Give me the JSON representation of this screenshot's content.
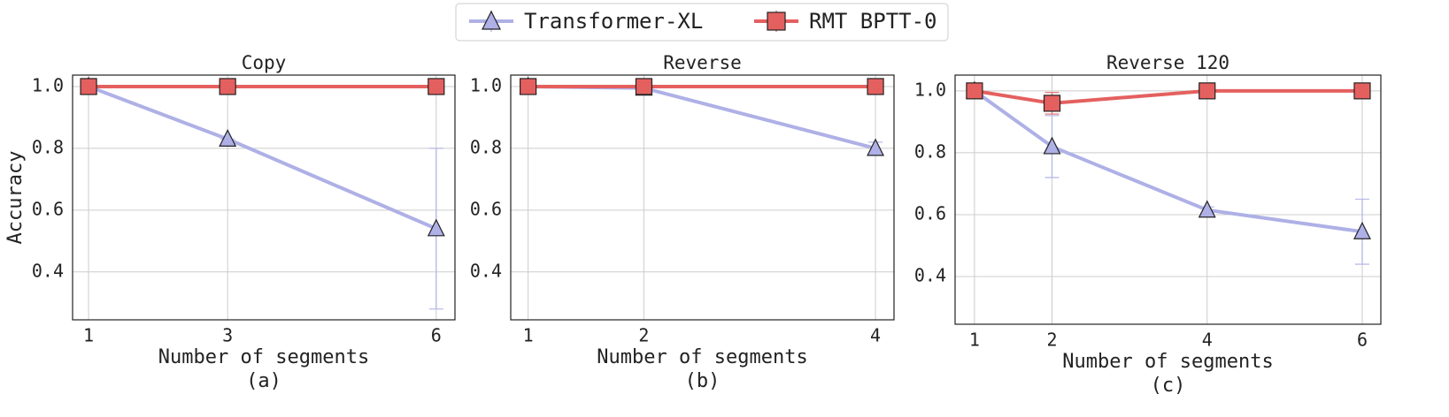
{
  "chart_data": [
    {
      "type": "line",
      "title": "Copy",
      "xlabel": "Number of segments",
      "ylabel": "Accuracy",
      "caption": "(a)",
      "x": [
        1,
        3,
        6
      ],
      "xlim": [
        0.77,
        6.27
      ],
      "xticks": [
        1,
        3,
        6
      ],
      "ylim": [
        0.245,
        1.037
      ],
      "yticks": [
        0.4,
        0.6,
        0.8,
        {
          "value": 1,
          "label": "1.0"
        }
      ],
      "grid": true,
      "series": [
        {
          "name": "Transformer-XL",
          "color": "#aeb0e6",
          "marker": "triangle",
          "values": [
            1.0,
            0.83,
            0.54
          ],
          "errors": [
            0,
            0,
            0.26
          ]
        },
        {
          "name": "RMT BPTT-0",
          "color": "#e4605f",
          "marker": "square",
          "values": [
            1.0,
            1.0,
            1.0
          ],
          "errors": [
            0,
            0,
            0
          ]
        }
      ]
    },
    {
      "type": "line",
      "title": "Reverse",
      "xlabel": "Number of segments",
      "caption": "(b)",
      "x": [
        1,
        2,
        4
      ],
      "xlim": [
        0.85,
        4.16
      ],
      "xticks": [
        1,
        2,
        4
      ],
      "ylim": [
        0.245,
        1.037
      ],
      "yticks": [
        0.4,
        0.6,
        0.8,
        {
          "value": 1,
          "label": "1.0"
        }
      ],
      "grid": true,
      "series": [
        {
          "color": "#aeb0e6",
          "marker": "triangle",
          "values": [
            1.0,
            0.995,
            0.8
          ],
          "errors": [
            0,
            0,
            0.02
          ]
        },
        {
          "color": "#e4605f",
          "marker": "square",
          "values": [
            1.0,
            1.0,
            1.0
          ],
          "errors": [
            0,
            0,
            0
          ]
        }
      ]
    },
    {
      "type": "line",
      "title": "Reverse 120",
      "xlabel": "Number of segments",
      "caption": "(c)",
      "x": [
        1,
        2,
        4,
        6
      ],
      "xlim": [
        0.75,
        6.24
      ],
      "xticks": [
        1,
        2,
        4,
        6
      ],
      "ylim": [
        0.246,
        1.051
      ],
      "yticks": [
        0.4,
        0.6,
        0.8,
        {
          "value": 1,
          "label": "1.0"
        }
      ],
      "grid": true,
      "series": [
        {
          "color": "#aeb0e6",
          "marker": "triangle",
          "values": [
            1.0,
            0.82,
            0.615,
            0.545
          ],
          "errors": [
            0,
            0.1,
            0.01,
            0.105
          ]
        },
        {
          "color": "#e4605f",
          "marker": "square",
          "values": [
            1.0,
            0.96,
            1.0,
            1.0
          ],
          "errors": [
            0,
            0.035,
            0.005,
            0.005
          ]
        }
      ]
    }
  ]
}
